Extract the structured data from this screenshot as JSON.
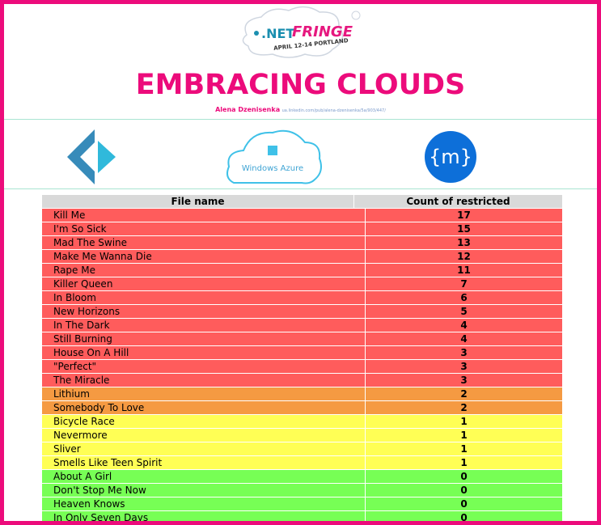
{
  "logo": {
    "net": ".NET",
    "fringe": "FRINGE",
    "dates": "APRIL 12-14 PORTLAND"
  },
  "header": {
    "title": "EMBRACING CLOUDS",
    "author": "Alena Dzenisenka",
    "link": "ua.linkedin.com/pub/alena-dzenisenka/5a/903/447/"
  },
  "icons": {
    "azure": "Windows Azure",
    "m": "{m}"
  },
  "table": {
    "columns": [
      "File name",
      "Count of restricted"
    ],
    "rows": [
      [
        "Kill Me",
        17
      ],
      [
        "I'm So Sick",
        15
      ],
      [
        "Mad The Swine",
        13
      ],
      [
        "Make Me Wanna Die",
        12
      ],
      [
        "Rape Me",
        11
      ],
      [
        "Killer Queen",
        7
      ],
      [
        "In Bloom",
        6
      ],
      [
        "New Horizons",
        5
      ],
      [
        "In The Dark",
        4
      ],
      [
        "Still Burning",
        4
      ],
      [
        "House On A Hill",
        3
      ],
      [
        "\"Perfect\"",
        3
      ],
      [
        "The Miracle",
        3
      ],
      [
        "Lithium",
        2
      ],
      [
        "Somebody To Love",
        2
      ],
      [
        "Bicycle Race",
        1
      ],
      [
        "Nevermore",
        1
      ],
      [
        "Sliver",
        1
      ],
      [
        "Smells Like Teen Spirit",
        1
      ],
      [
        "About A Girl",
        0
      ],
      [
        "Don't Stop Me Now",
        0
      ],
      [
        "Heaven Knows",
        0
      ],
      [
        "In Only Seven Days",
        0
      ]
    ],
    "row_colors": [
      "#ff5c5c",
      "#ff5c5c",
      "#ff5c5c",
      "#ff5c5c",
      "#ff5c5c",
      "#ff5c5c",
      "#ff5c5c",
      "#ff5c5c",
      "#ff5c5c",
      "#ff5c5c",
      "#ff5c5c",
      "#ff5c5c",
      "#ff5c5c",
      "#f59a42",
      "#f59a42",
      "#ffff55",
      "#ffff55",
      "#ffff55",
      "#ffff55",
      "#77ff55",
      "#77ff55",
      "#77ff55",
      "#77ff55"
    ],
    "header_color": "#d9d9d9"
  }
}
